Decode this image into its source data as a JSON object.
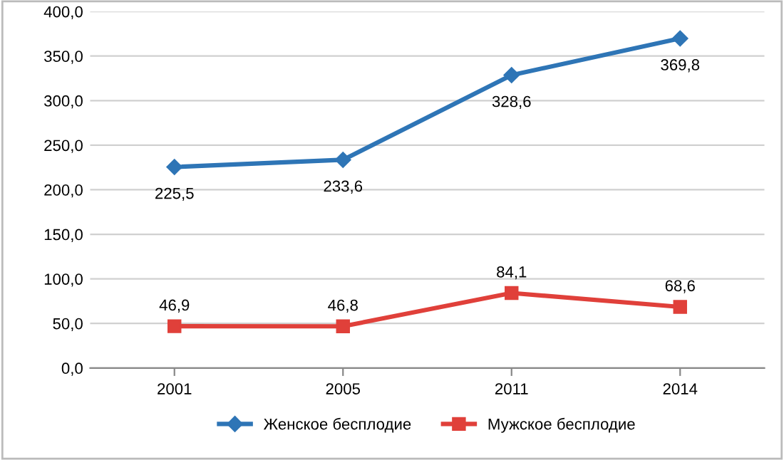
{
  "chart_data": {
    "type": "line",
    "categories": [
      "2001",
      "2005",
      "2011",
      "2014"
    ],
    "series": [
      {
        "name": "Женское бесплодие",
        "color": "#2e75b6",
        "marker": "diamond",
        "values": [
          225.5,
          233.6,
          328.6,
          369.8
        ],
        "value_labels": [
          "225,5",
          "233,6",
          "328,6",
          "369,8"
        ]
      },
      {
        "name": "Мужское бесплодие",
        "color": "#e0403a",
        "marker": "square",
        "values": [
          46.9,
          46.8,
          84.1,
          68.6
        ],
        "value_labels": [
          "46,9",
          "46,8",
          "84,1",
          "68,6"
        ]
      }
    ],
    "ylim": [
      0,
      400
    ],
    "yticks": [
      {
        "value": 0,
        "label": "0,0"
      },
      {
        "value": 50,
        "label": "50,0"
      },
      {
        "value": 100,
        "label": "100,0"
      },
      {
        "value": 150,
        "label": "150,0"
      },
      {
        "value": 200,
        "label": "200,0"
      },
      {
        "value": 250,
        "label": "250,0"
      },
      {
        "value": 300,
        "label": "300,0"
      },
      {
        "value": 350,
        "label": "350,0"
      },
      {
        "value": 400,
        "label": "400,0"
      }
    ],
    "grid": "y",
    "legend": "bottom",
    "line_style": "solid"
  }
}
